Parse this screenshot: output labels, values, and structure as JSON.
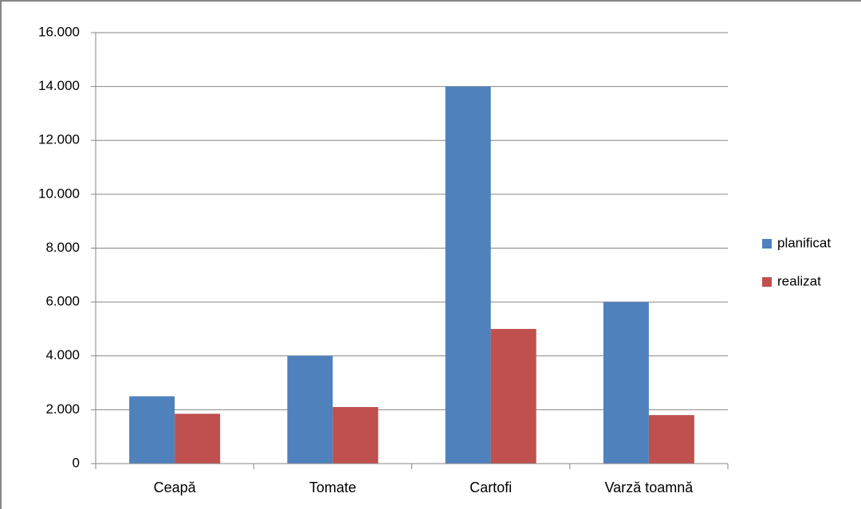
{
  "chart_data": {
    "type": "bar",
    "categories": [
      "Ceapă",
      "Tomate",
      "Cartofi",
      "Varză toamnă"
    ],
    "series": [
      {
        "name": "planificat",
        "color": "#4f81bd",
        "values": [
          2500,
          4000,
          14000,
          6000
        ]
      },
      {
        "name": "realizat",
        "color": "#c0504d",
        "values": [
          1850,
          2100,
          5000,
          1800
        ]
      }
    ],
    "ylim": [
      0,
      16000
    ],
    "yticks": [
      0,
      {
        "value": 2000,
        "label": "2.000"
      },
      {
        "value": 4000,
        "label": "4.000"
      },
      {
        "value": 6000,
        "label": "6.000"
      },
      {
        "value": 8000,
        "label": "8.000"
      },
      {
        "value": 10000,
        "label": "10.000"
      },
      {
        "value": 12000,
        "label": "12.000"
      },
      {
        "value": 14000,
        "label": "14.000"
      },
      {
        "value": 16000,
        "label": "16.000"
      }
    ],
    "grid": true,
    "legend": "right"
  }
}
